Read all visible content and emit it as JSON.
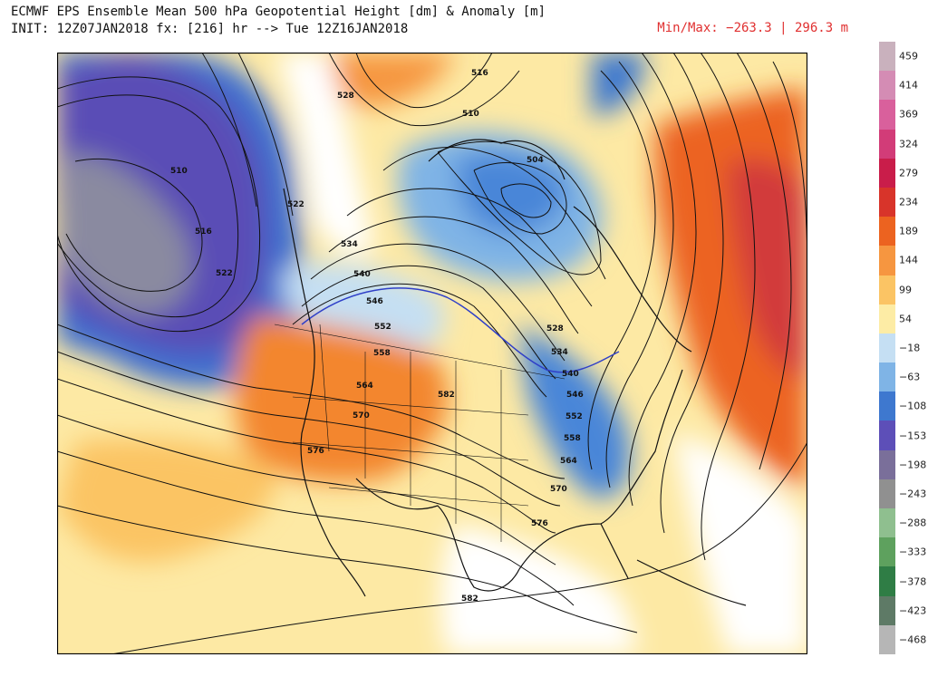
{
  "header": {
    "line1": "ECMWF EPS Ensemble Mean 500 hPa Geopotential Height [dm] & Anomaly [m]",
    "line2": "INIT: 12Z07JAN2018 fx: [216] hr --> Tue 12Z16JAN2018",
    "minmax": "Min/Max: −263.3 | 296.3 m"
  },
  "colorbar": {
    "labels": [
      "459",
      "414",
      "369",
      "324",
      "279",
      "234",
      "189",
      "144",
      "99",
      "54",
      "−18",
      "−63",
      "−108",
      "−153",
      "−198",
      "−243",
      "−288",
      "−333",
      "−378",
      "−423",
      "−468"
    ],
    "colors": [
      "#c9b1bd",
      "#d48cb4",
      "#d9609c",
      "#d23c78",
      "#c91d4a",
      "#d8342a",
      "#ec6320",
      "#f69640",
      "#fbc464",
      "#fdeca5",
      "#c5dff3",
      "#7fb4e6",
      "#3e78cf",
      "#5d4fb8",
      "#7a6f9a",
      "#909090",
      "#8fbf8f",
      "#5ea15e",
      "#2f7d45",
      "#5e7a66",
      "#b6b6b6"
    ]
  },
  "map": {
    "contour_labels": [
      "510",
      "516",
      "522",
      "528",
      "534",
      "540",
      "546",
      "552",
      "558",
      "564",
      "570",
      "576",
      "582",
      "504",
      "510",
      "516",
      "522",
      "528",
      "534",
      "540",
      "546",
      "552",
      "558",
      "564",
      "570",
      "576",
      "582"
    ]
  }
}
